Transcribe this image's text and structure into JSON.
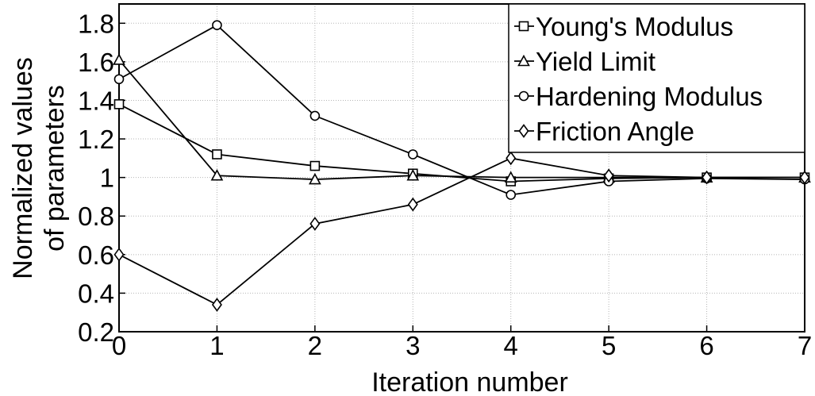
{
  "chart_data": {
    "type": "line",
    "title": "",
    "xlabel": "Iteration number",
    "ylabel": "Normalized values of parameters",
    "ylabel_lines": [
      "Normalized values",
      "of parameters"
    ],
    "x": [
      0,
      1,
      2,
      3,
      4,
      5,
      6,
      7
    ],
    "xlim": [
      0,
      7
    ],
    "ylim": [
      0.2,
      1.9
    ],
    "xticks": [
      "0",
      "1",
      "2",
      "3",
      "4",
      "5",
      "6",
      "7"
    ],
    "yticks": [
      "0.2",
      "0.4",
      "0.6",
      "0.8",
      "1",
      "1.2",
      "1.4",
      "1.6",
      "1.8"
    ],
    "ytick_values": [
      0.2,
      0.4,
      0.6,
      0.8,
      1.0,
      1.2,
      1.4,
      1.6,
      1.8
    ],
    "grid": true,
    "legend_position": "top-right",
    "series": [
      {
        "name": "Young's Modulus",
        "marker": "square",
        "color": "#000000",
        "values": [
          1.38,
          1.12,
          1.06,
          1.02,
          0.98,
          0.995,
          1.0,
          1.0
        ]
      },
      {
        "name": "Yield Limit",
        "marker": "triangle",
        "color": "#000000",
        "values": [
          1.61,
          1.01,
          0.99,
          1.01,
          1.0,
          1.0,
          1.0,
          1.0
        ]
      },
      {
        "name": "Hardening Modulus",
        "marker": "circle",
        "color": "#000000",
        "values": [
          1.51,
          1.79,
          1.32,
          1.12,
          0.91,
          0.98,
          0.995,
          0.99
        ]
      },
      {
        "name": "Friction Angle",
        "marker": "diamond",
        "color": "#000000",
        "values": [
          0.6,
          0.34,
          0.76,
          0.86,
          1.1,
          1.01,
          1.0,
          1.0
        ]
      }
    ]
  }
}
